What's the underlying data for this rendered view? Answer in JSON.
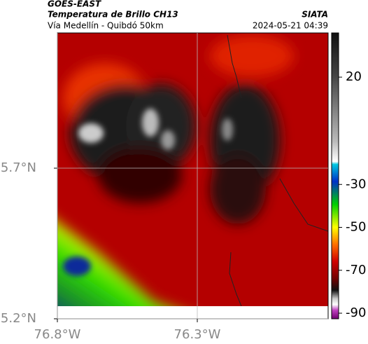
{
  "header": {
    "satellite": "GOES-EAST",
    "product": "Temperatura de Brillo CH13",
    "region": "Vía Medellín - Quibdó 50km",
    "source": "SIATA",
    "timestamp": "2024-05-21 04:39"
  },
  "map": {
    "lat_lim": [
      5.2,
      6.149
    ],
    "lon_lim": [
      -76.8,
      -75.8325
    ],
    "lat_ticks": [
      {
        "value": 5.7,
        "label": "5.7°N"
      },
      {
        "value": 5.2,
        "label": "5.2°N"
      }
    ],
    "lon_ticks": [
      {
        "value": -76.8,
        "label": "76.8°W"
      },
      {
        "value": -76.3,
        "label": "76.3°W"
      }
    ]
  },
  "colorbar": {
    "lim": [
      -92.6,
      40.6
    ],
    "ticks": [
      20,
      -30,
      -50,
      -70,
      -90
    ]
  }
}
